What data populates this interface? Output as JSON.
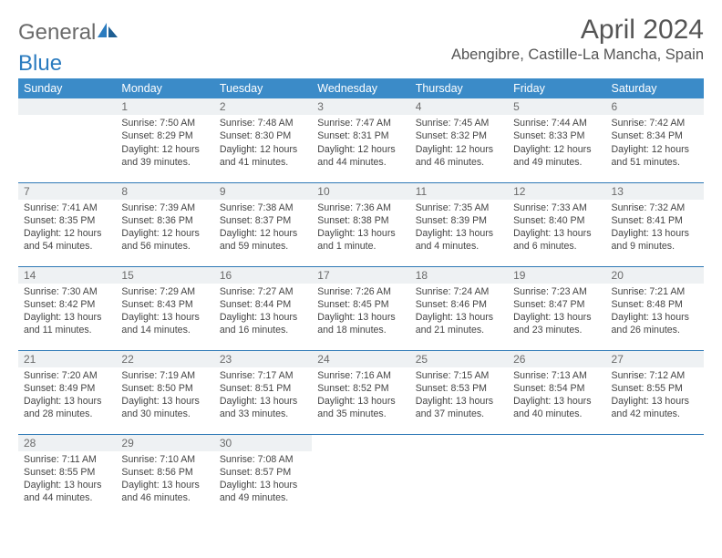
{
  "logo": {
    "text1": "General",
    "text2": "Blue",
    "text_color": "#6a6a6a",
    "accent_color": "#2a7bbf"
  },
  "header": {
    "month": "April 2024",
    "location": "Abengibre, Castille-La Mancha, Spain"
  },
  "colors": {
    "header_bg": "#3b8bc8",
    "header_fg": "#ffffff",
    "daynum_bg": "#eef1f3",
    "rule": "#2e79b6",
    "text": "#444444"
  },
  "weekdays": [
    "Sunday",
    "Monday",
    "Tuesday",
    "Wednesday",
    "Thursday",
    "Friday",
    "Saturday"
  ],
  "first_weekday_offset": 1,
  "days": [
    {
      "n": 1,
      "sunrise": "7:50 AM",
      "sunset": "8:29 PM",
      "daylight": "12 hours and 39 minutes."
    },
    {
      "n": 2,
      "sunrise": "7:48 AM",
      "sunset": "8:30 PM",
      "daylight": "12 hours and 41 minutes."
    },
    {
      "n": 3,
      "sunrise": "7:47 AM",
      "sunset": "8:31 PM",
      "daylight": "12 hours and 44 minutes."
    },
    {
      "n": 4,
      "sunrise": "7:45 AM",
      "sunset": "8:32 PM",
      "daylight": "12 hours and 46 minutes."
    },
    {
      "n": 5,
      "sunrise": "7:44 AM",
      "sunset": "8:33 PM",
      "daylight": "12 hours and 49 minutes."
    },
    {
      "n": 6,
      "sunrise": "7:42 AM",
      "sunset": "8:34 PM",
      "daylight": "12 hours and 51 minutes."
    },
    {
      "n": 7,
      "sunrise": "7:41 AM",
      "sunset": "8:35 PM",
      "daylight": "12 hours and 54 minutes."
    },
    {
      "n": 8,
      "sunrise": "7:39 AM",
      "sunset": "8:36 PM",
      "daylight": "12 hours and 56 minutes."
    },
    {
      "n": 9,
      "sunrise": "7:38 AM",
      "sunset": "8:37 PM",
      "daylight": "12 hours and 59 minutes."
    },
    {
      "n": 10,
      "sunrise": "7:36 AM",
      "sunset": "8:38 PM",
      "daylight": "13 hours and 1 minute."
    },
    {
      "n": 11,
      "sunrise": "7:35 AM",
      "sunset": "8:39 PM",
      "daylight": "13 hours and 4 minutes."
    },
    {
      "n": 12,
      "sunrise": "7:33 AM",
      "sunset": "8:40 PM",
      "daylight": "13 hours and 6 minutes."
    },
    {
      "n": 13,
      "sunrise": "7:32 AM",
      "sunset": "8:41 PM",
      "daylight": "13 hours and 9 minutes."
    },
    {
      "n": 14,
      "sunrise": "7:30 AM",
      "sunset": "8:42 PM",
      "daylight": "13 hours and 11 minutes."
    },
    {
      "n": 15,
      "sunrise": "7:29 AM",
      "sunset": "8:43 PM",
      "daylight": "13 hours and 14 minutes."
    },
    {
      "n": 16,
      "sunrise": "7:27 AM",
      "sunset": "8:44 PM",
      "daylight": "13 hours and 16 minutes."
    },
    {
      "n": 17,
      "sunrise": "7:26 AM",
      "sunset": "8:45 PM",
      "daylight": "13 hours and 18 minutes."
    },
    {
      "n": 18,
      "sunrise": "7:24 AM",
      "sunset": "8:46 PM",
      "daylight": "13 hours and 21 minutes."
    },
    {
      "n": 19,
      "sunrise": "7:23 AM",
      "sunset": "8:47 PM",
      "daylight": "13 hours and 23 minutes."
    },
    {
      "n": 20,
      "sunrise": "7:21 AM",
      "sunset": "8:48 PM",
      "daylight": "13 hours and 26 minutes."
    },
    {
      "n": 21,
      "sunrise": "7:20 AM",
      "sunset": "8:49 PM",
      "daylight": "13 hours and 28 minutes."
    },
    {
      "n": 22,
      "sunrise": "7:19 AM",
      "sunset": "8:50 PM",
      "daylight": "13 hours and 30 minutes."
    },
    {
      "n": 23,
      "sunrise": "7:17 AM",
      "sunset": "8:51 PM",
      "daylight": "13 hours and 33 minutes."
    },
    {
      "n": 24,
      "sunrise": "7:16 AM",
      "sunset": "8:52 PM",
      "daylight": "13 hours and 35 minutes."
    },
    {
      "n": 25,
      "sunrise": "7:15 AM",
      "sunset": "8:53 PM",
      "daylight": "13 hours and 37 minutes."
    },
    {
      "n": 26,
      "sunrise": "7:13 AM",
      "sunset": "8:54 PM",
      "daylight": "13 hours and 40 minutes."
    },
    {
      "n": 27,
      "sunrise": "7:12 AM",
      "sunset": "8:55 PM",
      "daylight": "13 hours and 42 minutes."
    },
    {
      "n": 28,
      "sunrise": "7:11 AM",
      "sunset": "8:55 PM",
      "daylight": "13 hours and 44 minutes."
    },
    {
      "n": 29,
      "sunrise": "7:10 AM",
      "sunset": "8:56 PM",
      "daylight": "13 hours and 46 minutes."
    },
    {
      "n": 30,
      "sunrise": "7:08 AM",
      "sunset": "8:57 PM",
      "daylight": "13 hours and 49 minutes."
    }
  ],
  "labels": {
    "sunrise": "Sunrise:",
    "sunset": "Sunset:",
    "daylight": "Daylight:"
  }
}
